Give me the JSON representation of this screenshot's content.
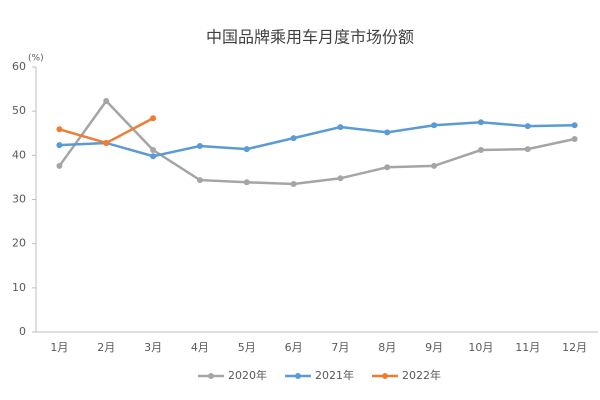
{
  "chart_data": {
    "type": "line",
    "title": "中国品牌乘用车月度市场份额",
    "y_unit_label": "(%)",
    "categories": [
      "1月",
      "2月",
      "3月",
      "4月",
      "5月",
      "6月",
      "7月",
      "8月",
      "9月",
      "10月",
      "11月",
      "12月"
    ],
    "series": [
      {
        "name": "2020年",
        "color": "#a5a5a5",
        "values": [
          37.6,
          52.3,
          41.2,
          34.4,
          33.9,
          33.5,
          34.8,
          37.3,
          37.6,
          41.2,
          41.4,
          43.7
        ]
      },
      {
        "name": "2021年",
        "color": "#5b9bd5",
        "values": [
          42.3,
          42.8,
          39.8,
          42.1,
          41.4,
          43.9,
          46.4,
          45.2,
          46.8,
          47.5,
          46.6,
          46.8
        ]
      },
      {
        "name": "2022年",
        "color": "#ed7d31",
        "values": [
          45.9,
          42.8,
          48.4,
          null,
          null,
          null,
          null,
          null,
          null,
          null,
          null,
          null
        ]
      }
    ],
    "ylim": [
      0,
      60
    ],
    "yticks": [
      0,
      10,
      20,
      30,
      40,
      50,
      60
    ],
    "grid": false,
    "legend": "bottom"
  }
}
